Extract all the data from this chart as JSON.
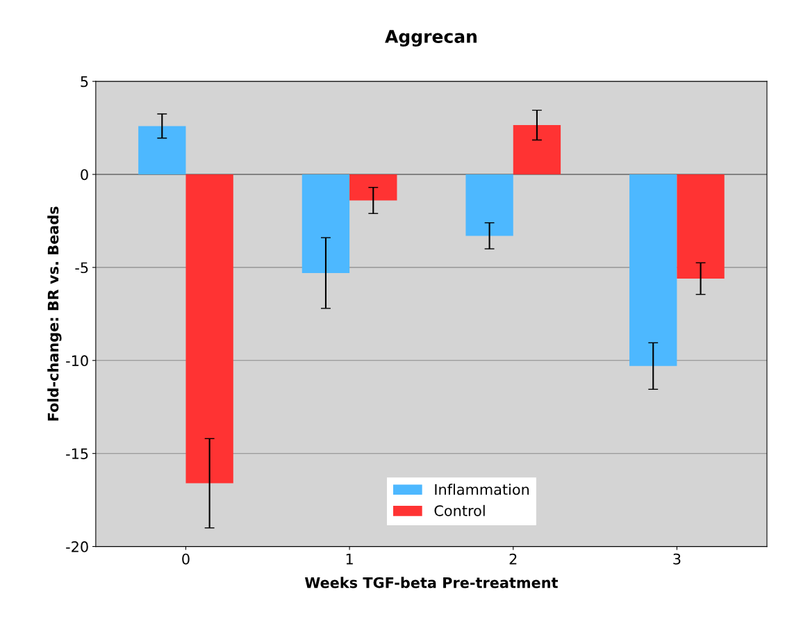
{
  "chart_data": {
    "type": "bar",
    "title": "Aggrecan",
    "xlabel": "Weeks TGF-beta Pre-treatment",
    "ylabel": "Fold-change: BR vs. Beads",
    "categories": [
      "0",
      "1",
      "2",
      "3"
    ],
    "series": [
      {
        "name": "Inflammation",
        "color": "#4db8ff",
        "values": [
          2.6,
          -5.3,
          -3.3,
          -10.3
        ],
        "errors": [
          0.65,
          1.9,
          0.7,
          1.25
        ]
      },
      {
        "name": "Control",
        "color": "#ff3333",
        "values": [
          -16.6,
          -1.4,
          2.65,
          -5.6
        ],
        "errors": [
          2.4,
          0.7,
          0.8,
          0.85
        ]
      }
    ],
    "ylim": [
      -20,
      5
    ],
    "yticks": [
      -20,
      -15,
      -10,
      -5,
      0,
      5
    ],
    "grid": "y",
    "legend": "bottom"
  }
}
